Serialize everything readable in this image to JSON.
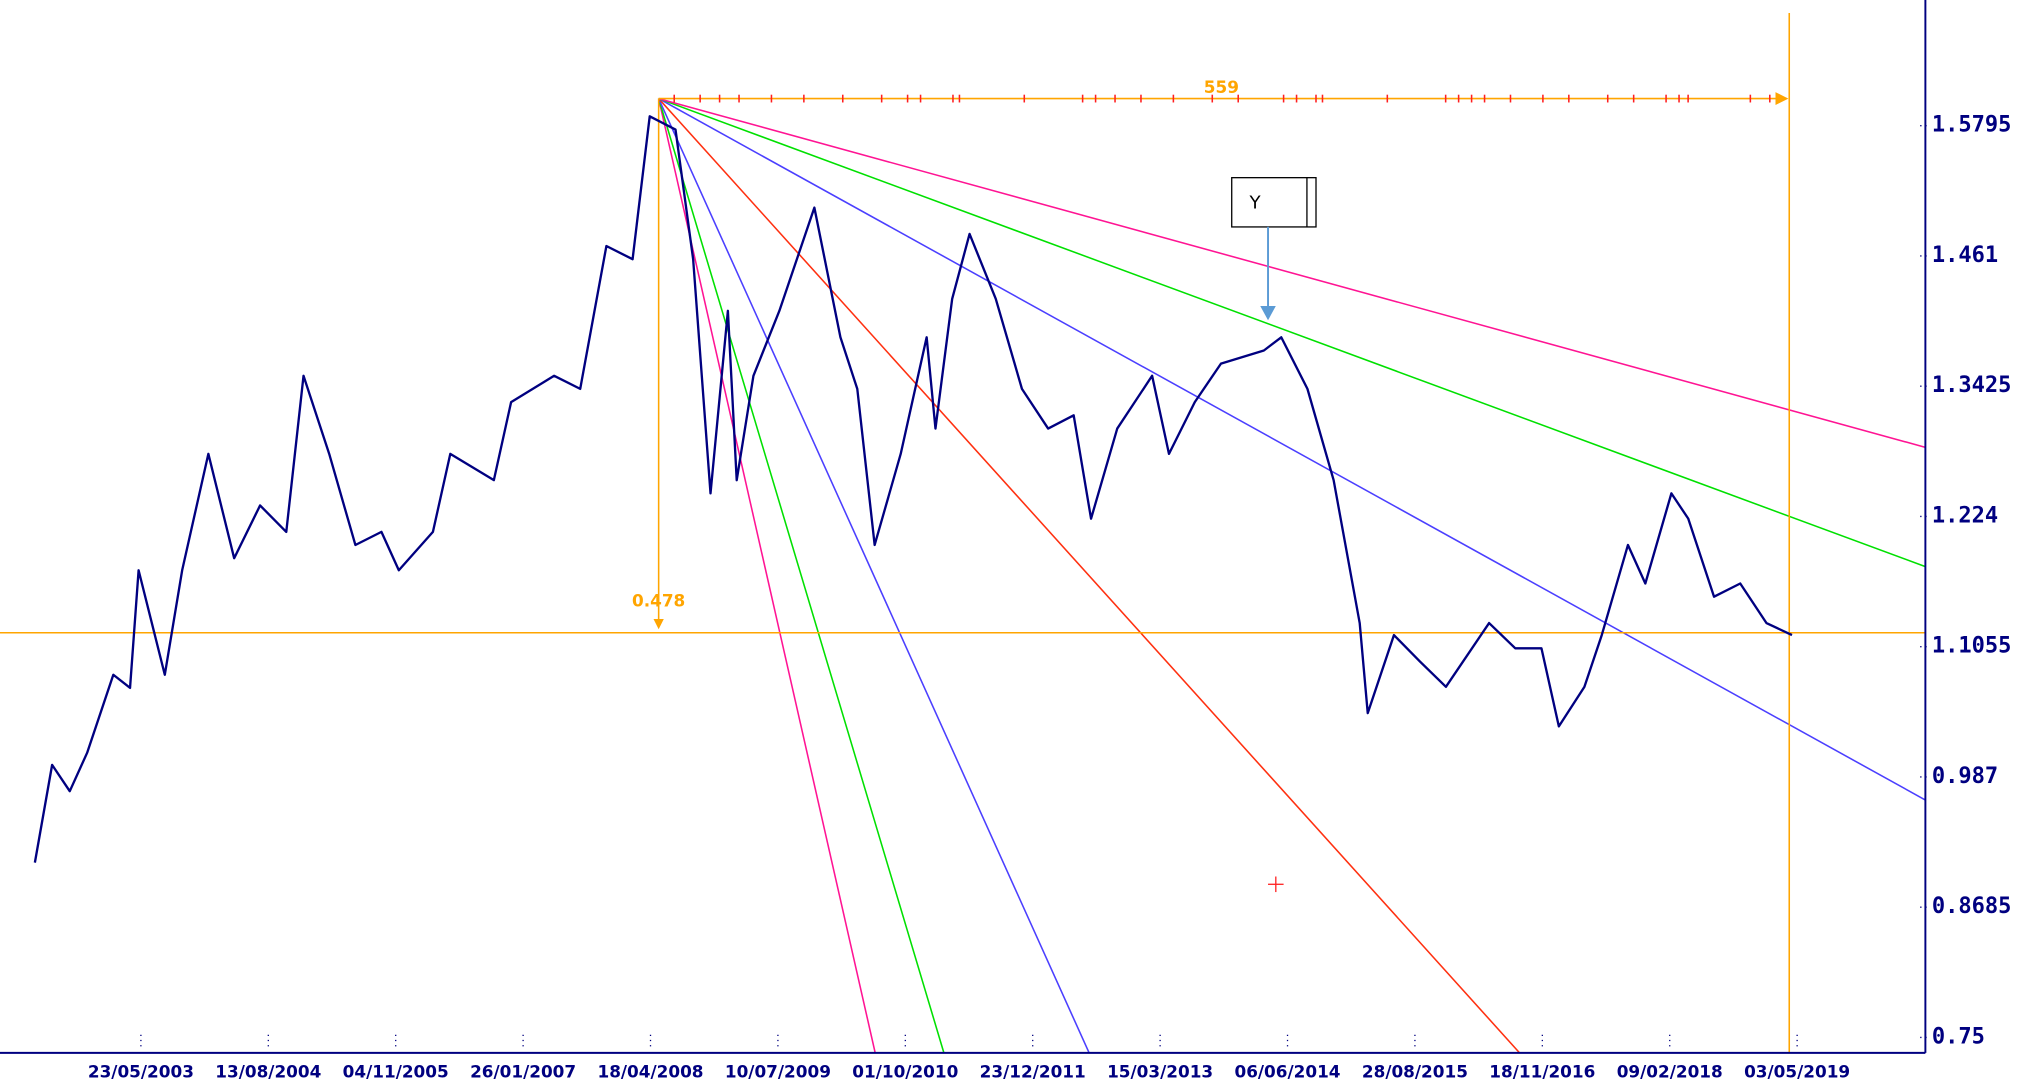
{
  "chart_data": {
    "type": "line",
    "x": [
      "15/05/2002",
      "15/07/2002",
      "15/09/2002",
      "15/11/2002",
      "15/02/2003",
      "15/04/2003",
      "15/05/2003",
      "15/08/2003",
      "15/10/2003",
      "15/01/2004",
      "15/04/2004",
      "15/07/2004",
      "15/10/2004",
      "15/12/2004",
      "15/03/2005",
      "15/06/2005",
      "15/09/2005",
      "15/11/2005",
      "15/03/2006",
      "15/05/2006",
      "15/10/2006",
      "15/12/2006",
      "15/05/2007",
      "15/08/2007",
      "15/11/2007",
      "15/02/2008",
      "15/04/2008",
      "15/07/2008",
      "15/09/2008",
      "15/11/2008",
      "15/01/2009",
      "15/02/2009",
      "15/04/2009",
      "15/07/2009",
      "15/11/2009",
      "15/02/2010",
      "15/04/2010",
      "15/06/2010",
      "15/09/2010",
      "15/12/2010",
      "15/01/2011",
      "15/03/2011",
      "15/05/2011",
      "15/08/2011",
      "15/11/2011",
      "15/02/2012",
      "15/05/2012",
      "15/07/2012",
      "15/10/2012",
      "15/02/2013",
      "15/04/2013",
      "15/07/2013",
      "15/10/2013",
      "15/03/2014",
      "15/05/2014",
      "15/08/2014",
      "15/11/2014",
      "15/02/2015",
      "15/03/2015",
      "15/06/2015",
      "15/09/2015",
      "15/12/2015",
      "15/05/2016",
      "15/08/2016",
      "15/11/2016",
      "15/01/2017",
      "15/04/2017",
      "15/06/2017",
      "15/09/2017",
      "15/11/2017",
      "15/02/2018",
      "15/04/2018",
      "15/07/2018",
      "15/10/2018",
      "15/01/2019",
      "15/04/2019"
    ],
    "series": [
      {
        "color": "#000080",
        "values": [
          0.909,
          0.998,
          0.974,
          1.009,
          1.08,
          1.068,
          1.175,
          1.08,
          1.175,
          1.281,
          1.186,
          1.234,
          1.21,
          1.352,
          1.281,
          1.198,
          1.21,
          1.175,
          1.21,
          1.281,
          1.257,
          1.328,
          1.352,
          1.34,
          1.47,
          1.458,
          1.588,
          1.576,
          1.458,
          1.245,
          1.411,
          1.257,
          1.352,
          1.411,
          1.505,
          1.387,
          1.34,
          1.198,
          1.281,
          1.387,
          1.304,
          1.422,
          1.481,
          1.422,
          1.34,
          1.304,
          1.316,
          1.222,
          1.304,
          1.352,
          1.281,
          1.328,
          1.363,
          1.375,
          1.387,
          1.34,
          1.257,
          1.127,
          1.045,
          1.116,
          1.092,
          1.069,
          1.127,
          1.104,
          1.104,
          1.033,
          1.069,
          1.116,
          1.198,
          1.163,
          1.245,
          1.222,
          1.151,
          1.163,
          1.127,
          1.116
        ]
      }
    ],
    "xlim": [
      "18/02/2002",
      "27/07/2020"
    ],
    "xticks": [
      "23/05/2003",
      "13/08/2004",
      "04/11/2005",
      "26/01/2007",
      "18/04/2008",
      "10/07/2009",
      "01/10/2010",
      "23/12/2011",
      "15/03/2013",
      "06/06/2014",
      "28/08/2015",
      "18/11/2016",
      "09/02/2018",
      "03/05/2019"
    ],
    "ylim": [
      0.736,
      1.682
    ],
    "yticks": [
      0.75,
      0.8685,
      0.987,
      1.1055,
      1.224,
      1.3425,
      1.461,
      1.5795
    ],
    "annotations": [
      "559",
      "0.478",
      "Y"
    ]
  }
}
